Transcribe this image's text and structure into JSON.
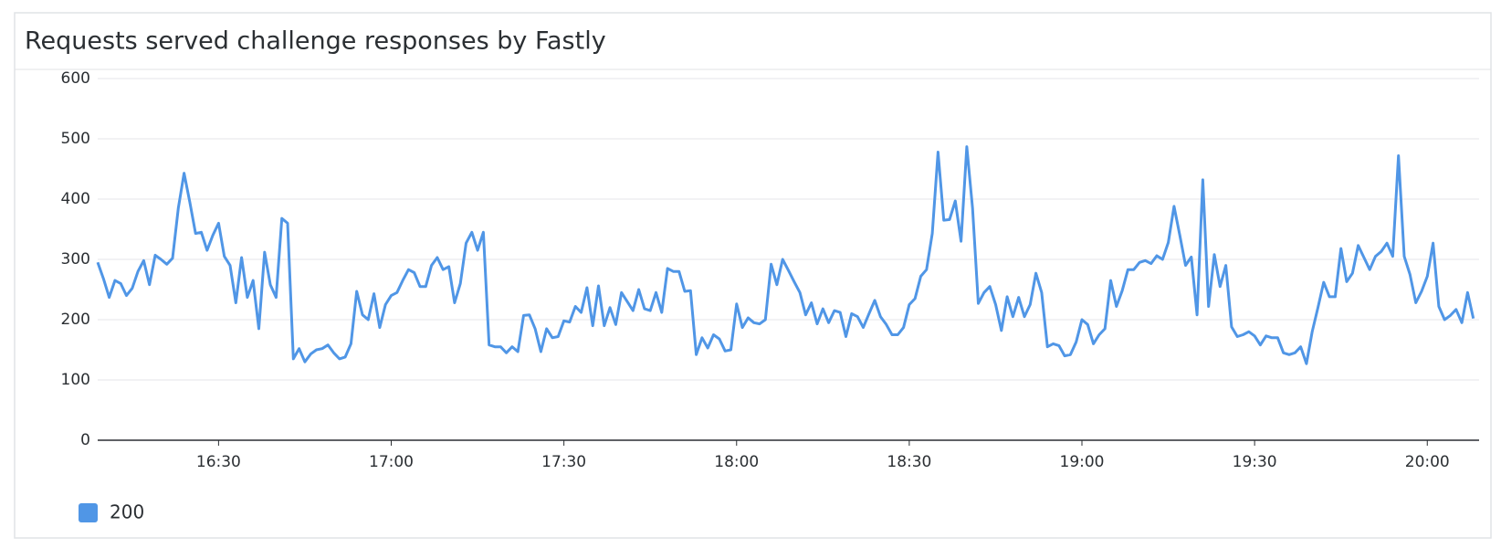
{
  "chart_data": {
    "type": "line",
    "title": "Requests served challenge responses by Fastly",
    "x": [
      "16:09",
      "16:10",
      "16:11",
      "16:12",
      "16:13",
      "16:14",
      "16:15",
      "16:16",
      "16:17",
      "16:18",
      "16:19",
      "16:20",
      "16:21",
      "16:22",
      "16:23",
      "16:24",
      "16:25",
      "16:26",
      "16:27",
      "16:28",
      "16:29",
      "16:30",
      "16:31",
      "16:32",
      "16:33",
      "16:34",
      "16:35",
      "16:36",
      "16:37",
      "16:38",
      "16:39",
      "16:40",
      "16:41",
      "16:42",
      "16:43",
      "16:44",
      "16:45",
      "16:46",
      "16:47",
      "16:48",
      "16:49",
      "16:50",
      "16:51",
      "16:52",
      "16:53",
      "16:54",
      "16:55",
      "16:56",
      "16:57",
      "16:58",
      "16:59",
      "17:00",
      "17:01",
      "17:02",
      "17:03",
      "17:04",
      "17:05",
      "17:06",
      "17:07",
      "17:08",
      "17:09",
      "17:10",
      "17:11",
      "17:12",
      "17:13",
      "17:14",
      "17:15",
      "17:16",
      "17:17",
      "17:18",
      "17:19",
      "17:20",
      "17:21",
      "17:22",
      "17:23",
      "17:24",
      "17:25",
      "17:26",
      "17:27",
      "17:28",
      "17:29",
      "17:30",
      "17:31",
      "17:32",
      "17:33",
      "17:34",
      "17:35",
      "17:36",
      "17:37",
      "17:38",
      "17:39",
      "17:40",
      "17:41",
      "17:42",
      "17:43",
      "17:44",
      "17:45",
      "17:46",
      "17:47",
      "17:48",
      "17:49",
      "17:50",
      "17:51",
      "17:52",
      "17:53",
      "17:54",
      "17:55",
      "17:56",
      "17:57",
      "17:58",
      "17:59",
      "18:00",
      "18:01",
      "18:02",
      "18:03",
      "18:04",
      "18:05",
      "18:06",
      "18:07",
      "18:08",
      "18:09",
      "18:10",
      "18:11",
      "18:12",
      "18:13",
      "18:14",
      "18:15",
      "18:16",
      "18:17",
      "18:18",
      "18:19",
      "18:20",
      "18:21",
      "18:22",
      "18:23",
      "18:24",
      "18:25",
      "18:26",
      "18:27",
      "18:28",
      "18:29",
      "18:30",
      "18:31",
      "18:32",
      "18:33",
      "18:34",
      "18:35",
      "18:36",
      "18:37",
      "18:38",
      "18:39",
      "18:40",
      "18:41",
      "18:42",
      "18:43",
      "18:44",
      "18:45",
      "18:46",
      "18:47",
      "18:48",
      "18:49",
      "18:50",
      "18:51",
      "18:52",
      "18:53",
      "18:54",
      "18:55",
      "18:56",
      "18:57",
      "18:58",
      "18:59",
      "19:00",
      "19:01",
      "19:02",
      "19:03",
      "19:04",
      "19:05",
      "19:06",
      "19:07",
      "19:08",
      "19:09",
      "19:10",
      "19:11",
      "19:12",
      "19:13",
      "19:14",
      "19:15",
      "19:16",
      "19:17",
      "19:18",
      "19:19",
      "19:20",
      "19:21",
      "19:22",
      "19:23",
      "19:24",
      "19:25",
      "19:26",
      "19:27",
      "19:28",
      "19:29",
      "19:30",
      "19:31",
      "19:32",
      "19:33",
      "19:34",
      "19:35",
      "19:36",
      "19:37",
      "19:38",
      "19:39",
      "19:40",
      "19:41",
      "19:42",
      "19:43",
      "19:44",
      "19:45",
      "19:46",
      "19:47",
      "19:48",
      "19:49",
      "19:50",
      "19:51",
      "19:52",
      "19:53",
      "19:54",
      "19:55",
      "19:56",
      "19:57",
      "19:58",
      "19:59",
      "20:00",
      "20:01",
      "20:02",
      "20:03",
      "20:04",
      "20:05",
      "20:06",
      "20:07",
      "20:08"
    ],
    "series": [
      {
        "name": "200",
        "color": "#5096e6",
        "values": [
          295,
          268,
          237,
          265,
          260,
          240,
          252,
          280,
          298,
          258,
          307,
          300,
          292,
          302,
          385,
          443,
          395,
          343,
          345,
          315,
          340,
          360,
          305,
          290,
          228,
          303,
          237,
          265,
          185,
          312,
          258,
          237,
          368,
          360,
          135,
          152,
          130,
          143,
          150,
          152,
          158,
          145,
          135,
          138,
          160,
          247,
          208,
          200,
          243,
          187,
          225,
          240,
          245,
          265,
          283,
          278,
          255,
          255,
          290,
          303,
          283,
          288,
          228,
          260,
          327,
          345,
          315,
          345,
          158,
          155,
          155,
          145,
          155,
          147,
          207,
          208,
          185,
          147,
          185,
          170,
          172,
          198,
          196,
          222,
          212,
          253,
          190,
          256,
          190,
          220,
          192,
          245,
          230,
          215,
          250,
          218,
          215,
          245,
          212,
          285,
          280,
          280,
          247,
          248,
          142,
          170,
          153,
          175,
          168,
          148,
          150,
          226,
          187,
          203,
          195,
          193,
          200,
          292,
          258,
          300,
          282,
          263,
          245,
          208,
          228,
          193,
          218,
          195,
          215,
          212,
          172,
          210,
          205,
          187,
          210,
          232,
          205,
          192,
          175,
          175,
          187,
          225,
          235,
          272,
          283,
          343,
          478,
          365,
          366,
          397,
          330,
          487,
          385,
          227,
          245,
          255,
          225,
          182,
          238,
          205,
          237,
          205,
          225,
          277,
          245,
          155,
          160,
          157,
          140,
          142,
          163,
          200,
          192,
          160,
          175,
          185,
          265,
          222,
          248,
          283,
          283,
          295,
          298,
          293,
          306,
          300,
          328,
          388,
          340,
          290,
          304,
          208,
          432,
          222,
          308,
          255,
          290,
          188,
          172,
          175,
          180,
          173,
          158,
          173,
          170,
          170,
          145,
          142,
          145,
          155,
          127,
          180,
          220,
          262,
          238,
          238,
          318,
          263,
          277,
          323,
          303,
          283,
          305,
          313,
          327,
          305,
          472,
          305,
          275,
          228,
          247,
          272,
          327,
          222,
          200,
          207,
          217,
          195,
          245,
          202
        ]
      }
    ],
    "xlim": [
      "16:09",
      "20:09"
    ],
    "xticks": [
      "16:30",
      "17:00",
      "17:30",
      "18:00",
      "18:30",
      "19:00",
      "19:30",
      "20:00"
    ],
    "ylim": [
      0,
      600
    ],
    "yticks": [
      0,
      100,
      200,
      300,
      400,
      500,
      600
    ],
    "grid": true
  }
}
